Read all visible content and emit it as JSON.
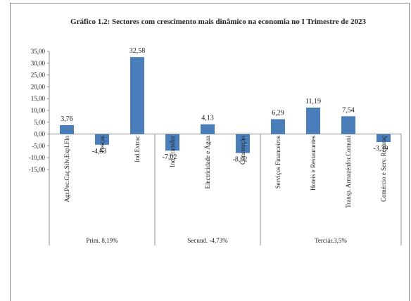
{
  "chart_data": {
    "type": "bar",
    "title": "Gráfico  1.2: Sectores com crescimento mais  dinâmico  na economia no I Trimestre  de 2023",
    "categories": [
      "Agr.Pec.Caç.Silv.Expl.Flo",
      "Pescas",
      "Ind.Extrac",
      "Ind.Transfor",
      "Electricidade e Água",
      "Construção",
      "Serviços Financeiros",
      "Hoteis e Restaurantes",
      "Transp. Armazénfor.Comuni",
      "Comércio e Serv. Reparaç"
    ],
    "values": [
      3.76,
      -4.53,
      32.58,
      -7.02,
      4.13,
      -8.02,
      6.29,
      11.19,
      7.54,
      -3.39
    ],
    "data_labels": [
      "3,76",
      "-4,53",
      "32,58",
      "-7,02",
      "4,13",
      "-8,02",
      "6,29",
      "11,19",
      "7,54",
      "-3,39"
    ],
    "ylim": [
      -15,
      35
    ],
    "yticks": [
      "35,00",
      "30,00",
      "25,00",
      "20,00",
      "15,00",
      "10,00",
      "5,00",
      "0,00",
      "-5,00",
      "-10,00",
      "-15,00"
    ],
    "groups": [
      {
        "label": "Prim. 8,19%",
        "start": 0,
        "end": 2
      },
      {
        "label": "Secund. -4,73%",
        "start": 3,
        "end": 5
      },
      {
        "label": "Terciár.3,5%",
        "start": 6,
        "end": 9
      }
    ],
    "bar_color": "#4a7ebb",
    "grid": false
  }
}
